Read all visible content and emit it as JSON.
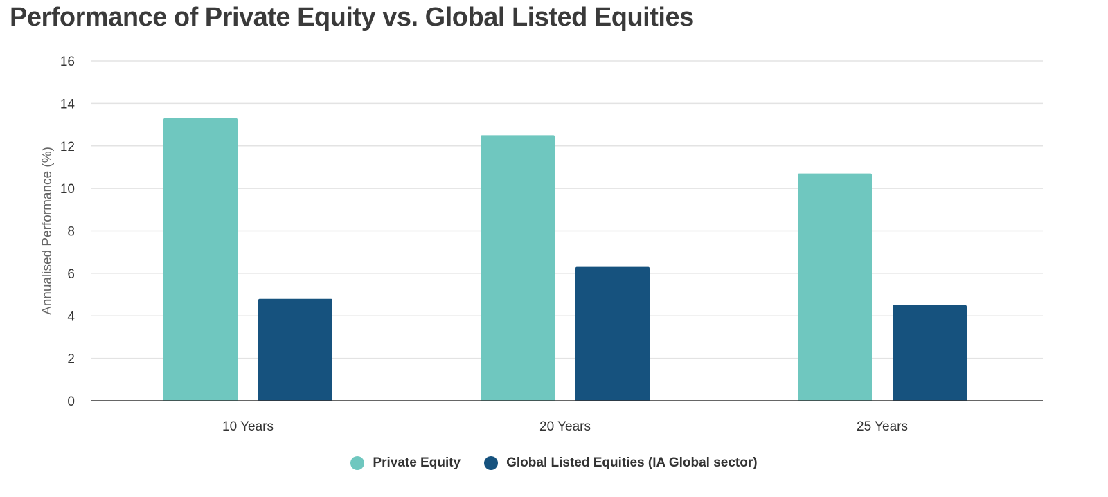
{
  "title": "Performance of Private Equity vs. Global Listed Equities",
  "chart_data": {
    "type": "bar",
    "title": "Performance of Private Equity vs. Global Listed Equities",
    "xlabel": "",
    "ylabel": "Annualised Performance (%)",
    "categories": [
      "10 Years",
      "20 Years",
      "25 Years"
    ],
    "series": [
      {
        "name": "Private Equity",
        "color": "#6fc7bf",
        "values": [
          13.3,
          12.5,
          10.7
        ]
      },
      {
        "name": "Global Listed Equities (IA Global sector)",
        "color": "#16527e",
        "values": [
          4.8,
          6.3,
          4.5
        ]
      }
    ],
    "ylim": [
      0,
      16
    ],
    "yticks": [
      0,
      2,
      4,
      6,
      8,
      10,
      12,
      14,
      16
    ],
    "grid": true,
    "legend_position": "bottom-center"
  }
}
